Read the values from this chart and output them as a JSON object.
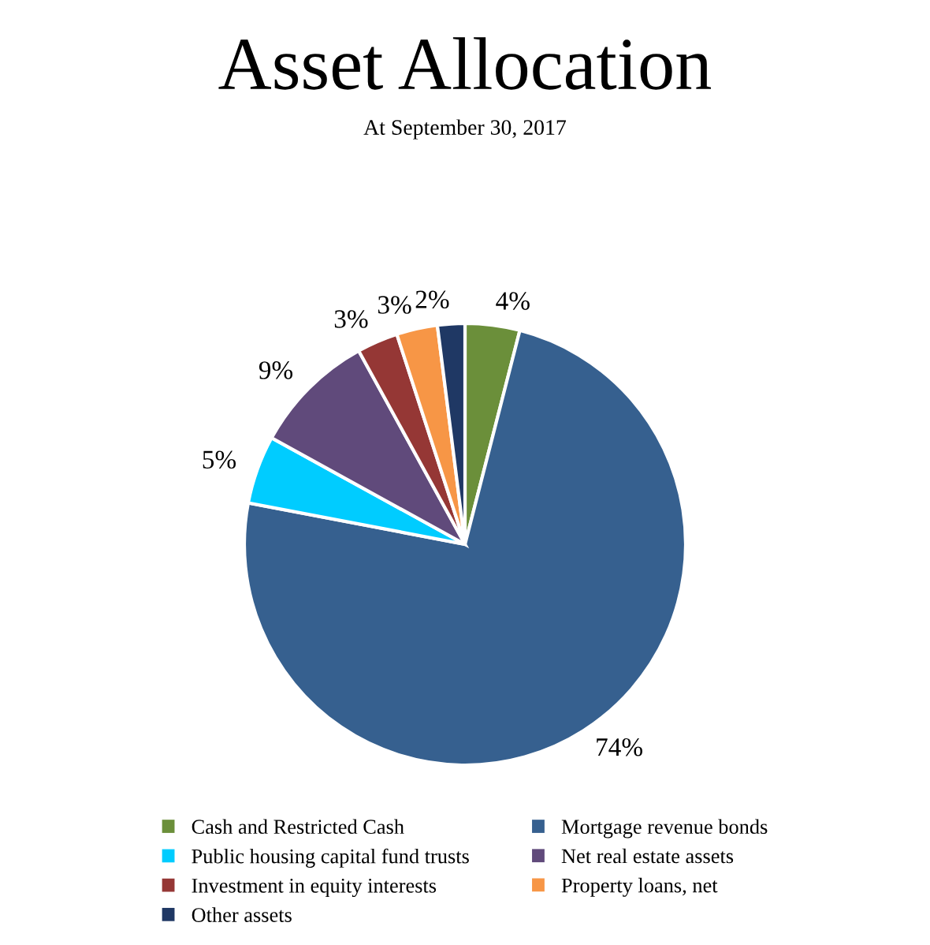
{
  "chart_data": {
    "type": "pie",
    "title": "Asset Allocation",
    "subtitle": "At September 30, 2017",
    "categories": [
      "Cash and Restricted Cash",
      "Mortgage revenue bonds",
      "Public housing capital fund trusts",
      "Net real estate assets",
      "Investment in equity interests",
      "Property loans, net",
      "Other assets"
    ],
    "values": [
      4,
      74,
      5,
      9,
      3,
      3,
      2
    ],
    "value_labels": [
      "4%",
      "74%",
      "5%",
      "9%",
      "3%",
      "3%",
      "2%"
    ],
    "colors": [
      "#6b8f3a",
      "#36608f",
      "#00ccff",
      "#604a7b",
      "#953735",
      "#f79646",
      "#1f3864"
    ],
    "legend": "bottom"
  }
}
